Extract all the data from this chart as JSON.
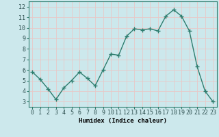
{
  "x": [
    0,
    1,
    2,
    3,
    4,
    5,
    6,
    7,
    8,
    9,
    10,
    11,
    12,
    13,
    14,
    15,
    16,
    17,
    18,
    19,
    20,
    21,
    22,
    23
  ],
  "y": [
    5.8,
    5.1,
    4.2,
    3.2,
    4.3,
    5.0,
    5.8,
    5.2,
    4.5,
    6.0,
    7.5,
    7.4,
    9.2,
    9.9,
    9.8,
    9.9,
    9.7,
    11.1,
    11.7,
    11.1,
    9.7,
    6.3,
    4.0,
    3.0
  ],
  "line_color": "#2e7d6e",
  "marker": "+",
  "marker_size": 4,
  "bg_color": "#cce8ec",
  "grid_color": "#e8c8c8",
  "xlabel": "Humidex (Indice chaleur)",
  "xlim": [
    -0.5,
    23.5
  ],
  "ylim": [
    2.5,
    12.5
  ],
  "yticks": [
    3,
    4,
    5,
    6,
    7,
    8,
    9,
    10,
    11,
    12
  ],
  "xticks": [
    0,
    1,
    2,
    3,
    4,
    5,
    6,
    7,
    8,
    9,
    10,
    11,
    12,
    13,
    14,
    15,
    16,
    17,
    18,
    19,
    20,
    21,
    22,
    23
  ],
  "xlabel_fontsize": 6.5,
  "tick_fontsize": 6.0,
  "linewidth": 1.0,
  "marker_color": "#2e7d6e"
}
